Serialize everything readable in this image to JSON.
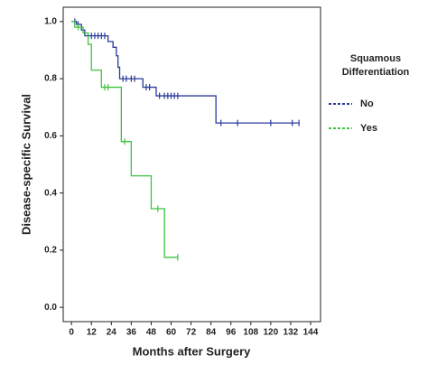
{
  "chart_data": {
    "type": "step",
    "x_label": "Months after Surgery",
    "y_label": "Disease-specific Survival",
    "legend_title": [
      "Squamous",
      "Differentiation"
    ],
    "xlim": [
      -5,
      150
    ],
    "xticks": [
      0,
      12,
      24,
      36,
      48,
      60,
      72,
      84,
      96,
      108,
      120,
      132,
      144
    ],
    "ylim": [
      -0.05,
      1.05
    ],
    "yticks": [
      {
        "value": 0,
        "label": "0.0"
      },
      {
        "value": 0.2,
        "label": "0.2"
      },
      {
        "value": 0.4,
        "label": "0.4"
      },
      {
        "value": 0.6,
        "label": "0.6"
      },
      {
        "value": 0.8,
        "label": "0.8"
      },
      {
        "value": 1,
        "label": "1.0"
      }
    ],
    "series": [
      {
        "name": "No",
        "color": "#2b3a9c",
        "x": [
          0,
          3,
          6,
          8,
          22,
          25,
          27,
          28,
          29,
          43,
          51,
          87,
          137
        ],
        "values": [
          1.0,
          0.99,
          0.97,
          0.95,
          0.93,
          0.91,
          0.88,
          0.84,
          0.8,
          0.77,
          0.74,
          0.645,
          0.645
        ],
        "censor_x": [
          2,
          4,
          10,
          12,
          14,
          16,
          18,
          20,
          31,
          33,
          36,
          38,
          45,
          47,
          53,
          56,
          58,
          60,
          62,
          64,
          90,
          100,
          120,
          133,
          137
        ],
        "censor_y": [
          1.0,
          0.99,
          0.95,
          0.95,
          0.95,
          0.95,
          0.95,
          0.95,
          0.8,
          0.8,
          0.8,
          0.8,
          0.77,
          0.77,
          0.74,
          0.74,
          0.74,
          0.74,
          0.74,
          0.74,
          0.645,
          0.645,
          0.645,
          0.645,
          0.645
        ]
      },
      {
        "name": "Yes",
        "color": "#3cc43c",
        "x": [
          0,
          2,
          7,
          10,
          12,
          18,
          30,
          36,
          48,
          56,
          64
        ],
        "values": [
          1.0,
          0.98,
          0.96,
          0.92,
          0.83,
          0.77,
          0.58,
          0.46,
          0.345,
          0.175,
          0.175
        ],
        "censor_x": [
          4,
          20,
          22,
          32,
          52,
          64
        ],
        "censor_y": [
          0.98,
          0.77,
          0.77,
          0.58,
          0.345,
          0.175
        ]
      }
    ]
  }
}
